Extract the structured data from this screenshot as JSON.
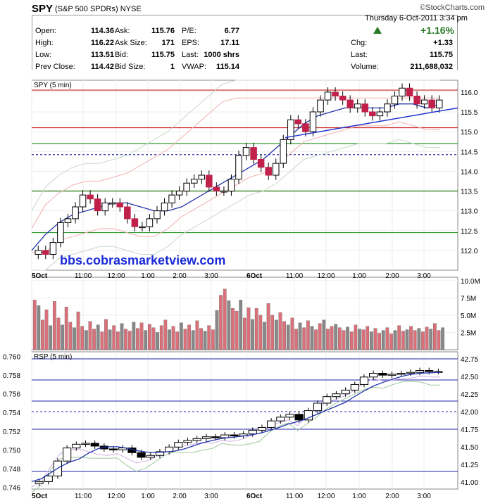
{
  "header": {
    "symbol": "SPY",
    "name": "(S&P 500 SPDRs)",
    "exchange": "NYSE",
    "watermark": "©StockCharts.com",
    "date": "Thursday  6-Oct-2011  3:34 pm",
    "pct_change": "+1.16%",
    "quote": [
      {
        "label": "Open:",
        "value": "114.36"
      },
      {
        "label": "High:",
        "value": "116.22"
      },
      {
        "label": "Low:",
        "value": "113.51"
      },
      {
        "label": "Prev Close:",
        "value": "114.42"
      },
      {
        "label": "Ask:",
        "value": "115.76"
      },
      {
        "label": "Ask Size:",
        "value": "171"
      },
      {
        "label": "Bid:",
        "value": "115.75"
      },
      {
        "label": "Bid Size:",
        "value": "1"
      },
      {
        "label": "P/E:",
        "value": "6.77"
      },
      {
        "label": "EPS:",
        "value": "17.11"
      },
      {
        "label": "Last:",
        "value": "1000 shrs"
      },
      {
        "label": "VWAP:",
        "value": "115.14"
      },
      {
        "label": "Chg:",
        "value": "+1.33"
      },
      {
        "label": "Last:",
        "value": "115.75"
      },
      {
        "label": "Volume:",
        "value": "211,688,032"
      }
    ]
  },
  "chart_data": [
    {
      "type": "line",
      "title": "SPY (5 min)",
      "watermark_text": "bbs.cobrasmarketview.com",
      "x_ticks": [
        "5Oct",
        "11:00",
        "12:00",
        "1:00",
        "2:00",
        "3:00",
        "6Oct",
        "11:00",
        "12:00",
        "1:00",
        "2:00",
        "3:00"
      ],
      "ylim": [
        111.5,
        116.3
      ],
      "y_ticks": [
        "112.0",
        "112.5",
        "113.0",
        "113.5",
        "114.0",
        "114.5",
        "115.0",
        "115.5",
        "116.0"
      ],
      "horizontal_lines": [
        {
          "value": 116.05,
          "color": "#c82020"
        },
        {
          "value": 115.1,
          "color": "#c82020"
        },
        {
          "value": 114.7,
          "color": "#2a9a2a"
        },
        {
          "value": 114.42,
          "color": "#3333aa",
          "style": "dashed"
        },
        {
          "value": 113.5,
          "color": "#c82020"
        },
        {
          "value": 113.5,
          "color": "#2a9a2a"
        },
        {
          "value": 112.45,
          "color": "#2a9a2a"
        }
      ],
      "trendline": {
        "from": [
          0.595,
          114.85
        ],
        "to": [
          1.0,
          115.6
        ]
      },
      "close": [
        112.0,
        111.9,
        112.2,
        112.7,
        112.8,
        113.1,
        113.4,
        113.3,
        113.0,
        113.2,
        113.2,
        113.1,
        112.8,
        112.6,
        112.6,
        112.8,
        113.0,
        113.2,
        113.4,
        113.5,
        113.7,
        113.8,
        113.9,
        113.6,
        113.5,
        113.5,
        113.8,
        114.4,
        114.6,
        114.3,
        114.1,
        113.9,
        114.2,
        114.8,
        115.3,
        115.2,
        115.0,
        115.5,
        115.8,
        116.0,
        115.9,
        115.8,
        115.6,
        115.7,
        115.5,
        115.4,
        115.5,
        115.7,
        115.9,
        116.1,
        115.9,
        115.7,
        115.8,
        115.6,
        115.8
      ],
      "mid_band": [
        112.0,
        112.4,
        112.7,
        112.9,
        113.0,
        113.1,
        113.2,
        113.2,
        113.1,
        113.0,
        113.0,
        113.1,
        113.3,
        113.5,
        113.7,
        113.9,
        114.1,
        114.3,
        114.6,
        114.9,
        115.2,
        115.4,
        115.5,
        115.6,
        115.6,
        115.6,
        115.6,
        115.7,
        115.7,
        115.6,
        115.7
      ],
      "upper_band": [
        113.0,
        113.6,
        113.9,
        114.1,
        114.2,
        114.2,
        114.3,
        114.4,
        114.6,
        114.8,
        115.0,
        115.3,
        115.6,
        115.9,
        116.2,
        116.3,
        116.3,
        116.3,
        116.3,
        116.3,
        116.3,
        116.3,
        116.3,
        116.3,
        116.3,
        116.3,
        116.3,
        116.3,
        116.3,
        116.3,
        116.3
      ],
      "lower_band": [
        111.5,
        111.5,
        111.8,
        111.9,
        112.0,
        112.1,
        112.1,
        112.0,
        111.9,
        111.9,
        112.1,
        112.4,
        112.6,
        112.8,
        113.0,
        113.2,
        113.4,
        113.5,
        113.7,
        114.0,
        114.3,
        114.4,
        114.5,
        114.6,
        114.7,
        114.7,
        114.7,
        114.8,
        114.7,
        114.6,
        114.6
      ]
    },
    {
      "type": "bar",
      "title": "Volume",
      "y_ticks": [
        "2.5M",
        "5.0M",
        "7.5M",
        "10.0M"
      ],
      "ylim": [
        0,
        10.5
      ],
      "values_millions": [
        7.2,
        6.4,
        4.3,
        5.8,
        3.5,
        7.0,
        4.6,
        3.6,
        6.2,
        4.0,
        3.2,
        5.5,
        3.4,
        2.8,
        4.1,
        3.0,
        3.6,
        2.6,
        4.4,
        2.9,
        3.5,
        2.6,
        3.8,
        3.0,
        2.7,
        4.0,
        3.1,
        3.9,
        2.8,
        3.7,
        3.2,
        2.5,
        3.5,
        4.3,
        2.9,
        3.4,
        2.6,
        3.9,
        3.0,
        3.6,
        2.8,
        4.2,
        3.1,
        2.7,
        3.5,
        2.9,
        5.7,
        7.9,
        8.8,
        7.1,
        6.0,
        5.6,
        7.2,
        4.6,
        6.1,
        4.4,
        6.0,
        5.0,
        4.0,
        6.7,
        5.0,
        4.3,
        5.4,
        4.1,
        3.6,
        4.6,
        3.0,
        3.9,
        3.2,
        4.2,
        3.4,
        2.9,
        3.8,
        4.3,
        3.0,
        3.4,
        3.7,
        3.2,
        2.8,
        3.3,
        2.6,
        3.6,
        3.0,
        2.9,
        3.4,
        2.6,
        3.1,
        2.4,
        2.8,
        3.2,
        2.3,
        2.8,
        3.5,
        2.7,
        2.9,
        3.4,
        2.8,
        3.1,
        2.6,
        3.3,
        3.0,
        3.8,
        2.8,
        3.2
      ]
    },
    {
      "type": "line",
      "title": "RSP (5 min)",
      "ylim_left": [
        0.7458,
        0.7605
      ],
      "y_ticks_left": [
        "0.746",
        "0.748",
        "0.750",
        "0.752",
        "0.754",
        "0.756",
        "0.758",
        "0.760"
      ],
      "y_ticks_right": [
        "41.00",
        "41.25",
        "41.50",
        "41.75",
        "42.00",
        "42.25",
        "42.50",
        "42.75"
      ],
      "x_ticks": [
        "5Oct",
        "11:00",
        "12:00",
        "1:00",
        "2:00",
        "3:00",
        "6Oct",
        "11:00",
        "12:00",
        "1:00",
        "2:00",
        "3:00"
      ],
      "horizontal_lines_right": [
        42.75,
        42.45,
        42.15,
        42.0,
        41.75,
        41.15
      ],
      "ratio": [
        0.7466,
        0.7472,
        0.7488,
        0.7502,
        0.7506,
        0.7507,
        0.7504,
        0.7501,
        0.75,
        0.7502,
        0.7497,
        0.7492,
        0.7494,
        0.7498,
        0.7503,
        0.7508,
        0.751,
        0.7512,
        0.7514,
        0.7513,
        0.7516,
        0.7515,
        0.7517,
        0.7521,
        0.7524,
        0.7531,
        0.7535,
        0.7538,
        0.7532,
        0.7542,
        0.755,
        0.7557,
        0.756,
        0.7564,
        0.757,
        0.7578,
        0.7582,
        0.758,
        0.7581,
        0.7582,
        0.7583,
        0.7585,
        0.7584,
        0.7584
      ]
    }
  ]
}
